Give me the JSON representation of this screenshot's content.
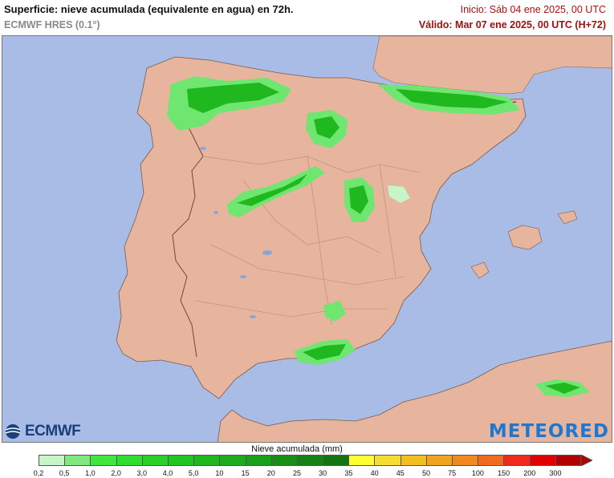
{
  "header": {
    "title": "Superficie: nieve acumulada (equivalente en agua) en 72h.",
    "model": "ECMWF HRES (0.1°)",
    "init": "Inicio: Sáb 04 ene 2025, 00 UTC",
    "valid": "Válido: Mar 07 ene 2025, 00 UTC (H+72)"
  },
  "logos": {
    "left": "ECMWF",
    "right": "METEORED"
  },
  "legend": {
    "title": "Nieve acumulada (mm)",
    "ticks": [
      "0,2",
      "0,5",
      "1,0",
      "2,0",
      "3,0",
      "4,0",
      "5,0",
      "10",
      "15",
      "20",
      "25",
      "30",
      "35",
      "40",
      "45",
      "50",
      "75",
      "100",
      "150",
      "200",
      "300"
    ],
    "colors": [
      "#c8f5c8",
      "#7fe87f",
      "#3ee63e",
      "#2fdc2f",
      "#28d028",
      "#22c422",
      "#1fb81f",
      "#1cab1c",
      "#1a9f1a",
      "#178f17",
      "#148214",
      "#117511",
      "#ffff33",
      "#f5dd33",
      "#f0c020",
      "#f0a520",
      "#f08a20",
      "#f06a20",
      "#f02a20",
      "#e00000",
      "#b00000"
    ]
  },
  "colors": {
    "sea": "#a8bce6",
    "land": "#e7b59e",
    "snow_dark": "#1fb81f",
    "snow_light": "#6fe66f",
    "text_red": "#b01010"
  }
}
